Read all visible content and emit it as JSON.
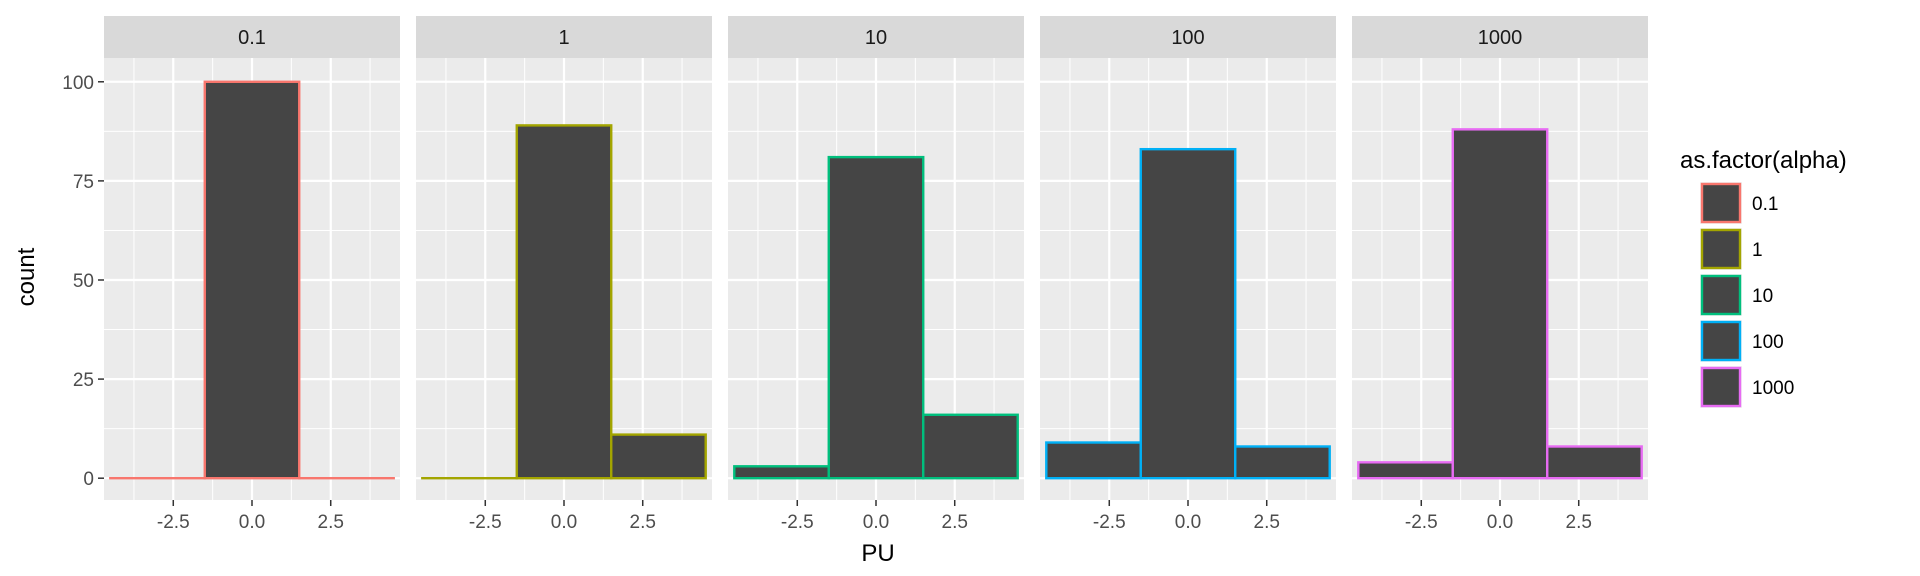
{
  "chart_data": {
    "type": "bar",
    "chart_kind": "faceted histogram",
    "xlabel": "PU",
    "ylabel": "count",
    "xlim": [
      -4.7,
      4.7
    ],
    "ylim": [
      -5.5,
      106
    ],
    "x_ticks": [
      -2.5,
      0.0,
      2.5
    ],
    "x_tick_labels": [
      "-2.5",
      "0.0",
      "2.5"
    ],
    "y_ticks": [
      0,
      25,
      50,
      75,
      100
    ],
    "y_tick_labels": [
      "0",
      "25",
      "50",
      "75",
      "100"
    ],
    "grid": true,
    "bar_fill": "#454545",
    "panel_bg": "#ebebeb",
    "strip_bg": "#d9d9d9",
    "bin_edges": [
      -4.5,
      -1.5,
      1.5,
      4.5
    ],
    "legend": {
      "title": "as.factor(alpha)",
      "placement": "right"
    },
    "series": [
      {
        "name": "0.1",
        "color": "#F8766D",
        "values": [
          0,
          100,
          0
        ]
      },
      {
        "name": "1",
        "color": "#A3A500",
        "values": [
          0,
          89,
          11
        ]
      },
      {
        "name": "10",
        "color": "#00BF7D",
        "values": [
          3,
          81,
          16
        ]
      },
      {
        "name": "100",
        "color": "#00B0F6",
        "values": [
          9,
          83,
          8
        ]
      },
      {
        "name": "1000",
        "color": "#E76BF3",
        "values": [
          4,
          88,
          8
        ]
      }
    ]
  }
}
